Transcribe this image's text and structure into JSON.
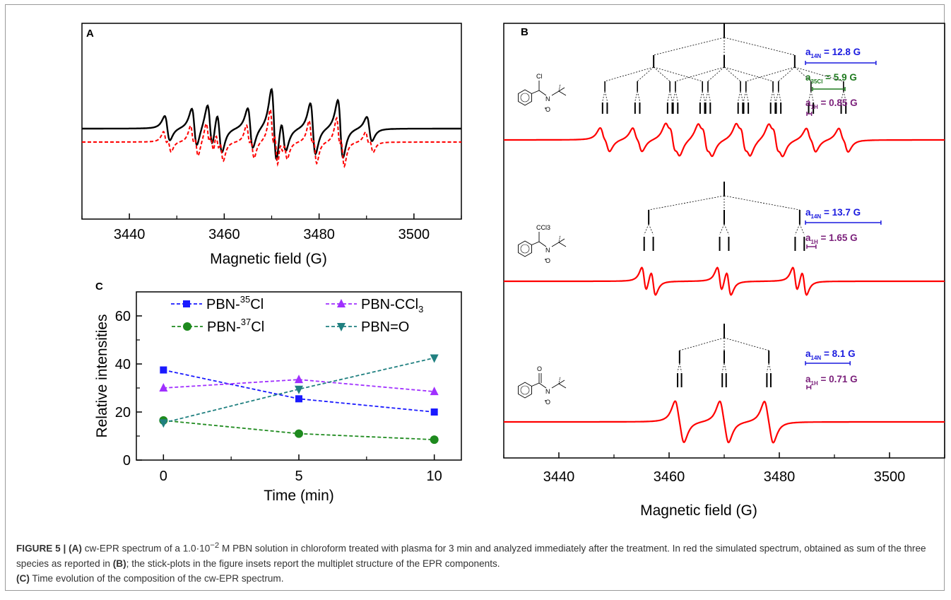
{
  "figure": {
    "caption": {
      "label": "FIGURE 5 |",
      "a_ref": "(A)",
      "text1": " cw-EPR spectrum of a 1.0·10",
      "exp": "−2",
      "text2": " M PBN solution in chloroform treated with plasma for 3 min and analyzed immediately after the treatment. In red the simulated spectrum, obtained as sum of the three species as reported in ",
      "b_ref": "(B)",
      "text3": "; the stick-plots in the figure insets report the multiplet structure of the EPR components.",
      "c_ref": "(C)",
      "text4": " Time evolution of the composition of the cw-EPR spectrum."
    }
  },
  "chart_data": [
    {
      "panel": "A",
      "type": "line",
      "xlabel": "Magnetic field (G)",
      "xlim": [
        3430,
        3510
      ],
      "xticks": [
        3440,
        3460,
        3480,
        3500
      ],
      "series": [
        {
          "style": "solid",
          "color": "#000000"
        },
        {
          "style": "dashed",
          "color": "#ff0000"
        }
      ],
      "line_positions_G": [
        3448,
        3453.7,
        3457,
        3459,
        3465.5,
        3470.5,
        3472.5,
        3478.7,
        3484.5,
        3490.6
      ],
      "grid": false
    },
    {
      "panel": "B",
      "type": "line",
      "xlabel": "Magnetic field (G)",
      "xlim": [
        3430,
        3510
      ],
      "xticks": [
        3440,
        3460,
        3480,
        3500
      ],
      "color": "#ff0000",
      "species": [
        {
          "molecule": {
            "atoms": [
              "Cl",
              "N",
              "O"
            ]
          },
          "couplings": [
            {
              "label": "a",
              "sub": "14N",
              "value": "12.8 G",
              "color": "#1a1adf",
              "text": " = 12.8 G"
            },
            {
              "label": "a",
              "sub": "35Cl",
              "value": "5.9 G",
              "color": "#1f7a1f",
              "text": " = 5.9 G"
            },
            {
              "label": "a",
              "sub": "1H",
              "value": "0.85 G",
              "color": "#7a1f7a",
              "text": " = 0.85 G"
            }
          ],
          "aN": 12.8,
          "aCl": 5.9,
          "aH": 0.85
        },
        {
          "molecule": {
            "atoms": [
              "CCl3",
              "N",
              "O"
            ]
          },
          "couplings": [
            {
              "label": "a",
              "sub": "14N",
              "value": "13.7 G",
              "color": "#1a1adf",
              "text": " = 13.7 G"
            },
            {
              "label": "a",
              "sub": "1H",
              "value": "1.65 G",
              "color": "#7a1f7a",
              "text": " = 1.65 G"
            }
          ],
          "aN": 13.7,
          "aH": 1.65
        },
        {
          "molecule": {
            "atoms": [
              "O",
              "N",
              "O"
            ]
          },
          "couplings": [
            {
              "label": "a",
              "sub": "14N",
              "value": "8.1 G",
              "color": "#1a1adf",
              "text": " = 8.1 G"
            },
            {
              "label": "a",
              "sub": "1H",
              "value": "0.71 G",
              "color": "#7a1f7a",
              "text": " = 0.71 G"
            }
          ],
          "aN": 8.1,
          "aH": 0.71
        }
      ],
      "grid": false
    },
    {
      "panel": "C",
      "type": "scatter",
      "xlabel": "Time (min)",
      "ylabel": "Relative intensities",
      "xlim": [
        -1,
        11
      ],
      "ylim": [
        0,
        70
      ],
      "xticks": [
        0,
        5,
        10
      ],
      "yticks": [
        0,
        20,
        40,
        60
      ],
      "x": [
        0,
        5,
        10
      ],
      "series": [
        {
          "name": "PBN-35Cl",
          "base": "PBN-",
          "sup": "35",
          "tail": "Cl",
          "values": [
            37.5,
            25.5,
            20
          ],
          "color": "#1a1aff",
          "marker": "square"
        },
        {
          "name": "PBN-37Cl",
          "base": "PBN-",
          "sup": "37",
          "tail": "Cl",
          "values": [
            16.5,
            11,
            8.5
          ],
          "color": "#1e8a1e",
          "marker": "circle"
        },
        {
          "name": "PBN-CCl3",
          "base": "PBN-CCl",
          "sub": "3",
          "values": [
            30,
            33.5,
            28.5
          ],
          "color": "#a030ff",
          "marker": "triangle-up"
        },
        {
          "name": "PBN=O",
          "base": "PBN=O",
          "values": [
            15.5,
            29.5,
            42.5
          ],
          "color": "#208080",
          "marker": "triangle-down"
        }
      ],
      "legend": "top",
      "grid": false
    }
  ]
}
